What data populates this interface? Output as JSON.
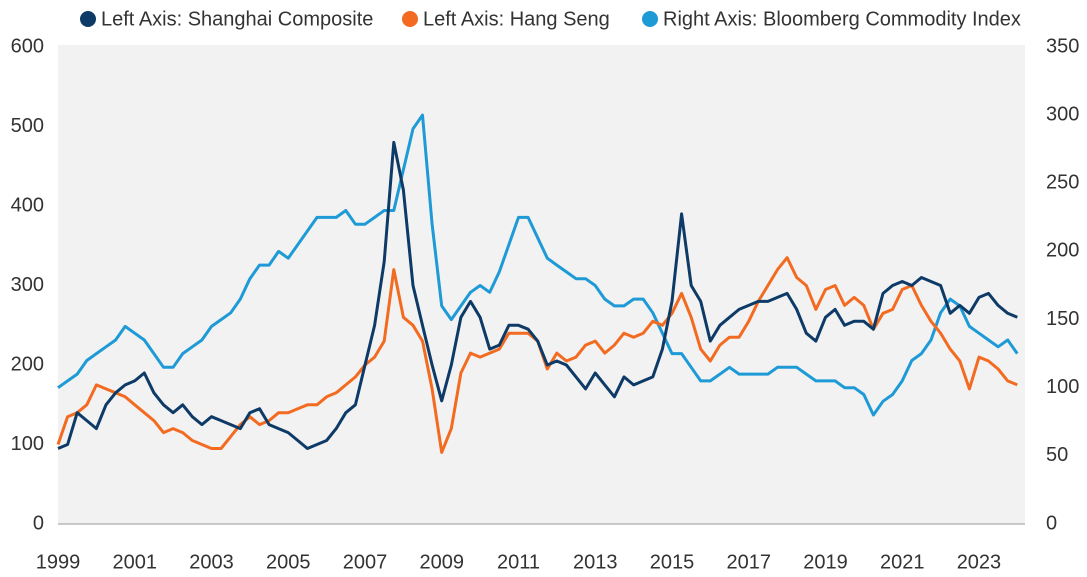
{
  "chart_data": {
    "type": "line",
    "x": [
      1999,
      1999.25,
      1999.5,
      1999.75,
      2000,
      2000.25,
      2000.5,
      2000.75,
      2001,
      2001.25,
      2001.5,
      2001.75,
      2002,
      2002.25,
      2002.5,
      2002.75,
      2003,
      2003.25,
      2003.5,
      2003.75,
      2004,
      2004.25,
      2004.5,
      2004.75,
      2005,
      2005.25,
      2005.5,
      2005.75,
      2006,
      2006.25,
      2006.5,
      2006.75,
      2007,
      2007.25,
      2007.5,
      2007.75,
      2008,
      2008.25,
      2008.5,
      2008.75,
      2009,
      2009.25,
      2009.5,
      2009.75,
      2010,
      2010.25,
      2010.5,
      2010.75,
      2011,
      2011.25,
      2011.5,
      2011.75,
      2012,
      2012.25,
      2012.5,
      2012.75,
      2013,
      2013.25,
      2013.5,
      2013.75,
      2014,
      2014.25,
      2014.5,
      2014.75,
      2015,
      2015.25,
      2015.5,
      2015.75,
      2016,
      2016.25,
      2016.5,
      2016.75,
      2017,
      2017.25,
      2017.5,
      2017.75,
      2018,
      2018.25,
      2018.5,
      2018.75,
      2019,
      2019.25,
      2019.5,
      2019.75,
      2020,
      2020.25,
      2020.5,
      2020.75,
      2021,
      2021.25,
      2021.5,
      2021.75,
      2022,
      2022.25,
      2022.5,
      2022.75,
      2023,
      2023.25,
      2023.5,
      2023.75,
      2024
    ],
    "series": [
      {
        "name": "Left Axis: Shanghai Composite",
        "color": "#0d3a66",
        "axis": "y",
        "values": [
          95,
          100,
          140,
          130,
          120,
          150,
          165,
          175,
          180,
          190,
          165,
          150,
          140,
          150,
          135,
          125,
          135,
          130,
          125,
          120,
          140,
          145,
          125,
          120,
          115,
          105,
          95,
          100,
          105,
          120,
          140,
          150,
          200,
          250,
          330,
          480,
          420,
          300,
          250,
          200,
          155,
          200,
          260,
          280,
          260,
          220,
          225,
          250,
          250,
          245,
          230,
          200,
          205,
          200,
          185,
          170,
          190,
          175,
          160,
          185,
          175,
          180,
          185,
          220,
          280,
          390,
          300,
          280,
          230,
          250,
          260,
          270,
          275,
          280,
          280,
          285,
          290,
          270,
          240,
          230,
          260,
          270,
          250,
          255,
          255,
          245,
          290,
          300,
          305,
          300,
          310,
          305,
          300,
          265,
          275,
          265,
          285,
          290,
          275,
          265,
          260
        ]
      },
      {
        "name": "Left Axis: Hang Seng",
        "color": "#f26b21",
        "axis": "y",
        "values": [
          100,
          135,
          140,
          150,
          175,
          170,
          165,
          160,
          150,
          140,
          130,
          115,
          120,
          115,
          105,
          100,
          95,
          95,
          110,
          125,
          135,
          125,
          130,
          140,
          140,
          145,
          150,
          150,
          160,
          165,
          175,
          185,
          200,
          210,
          230,
          320,
          260,
          250,
          230,
          170,
          90,
          120,
          190,
          215,
          210,
          215,
          220,
          240,
          240,
          240,
          230,
          195,
          215,
          205,
          210,
          225,
          230,
          215,
          225,
          240,
          235,
          240,
          255,
          250,
          265,
          290,
          260,
          220,
          205,
          225,
          235,
          235,
          255,
          280,
          300,
          320,
          335,
          310,
          300,
          270,
          295,
          300,
          275,
          285,
          275,
          245,
          265,
          270,
          295,
          300,
          275,
          255,
          240,
          220,
          205,
          170,
          210,
          205,
          195,
          180,
          175
        ]
      },
      {
        "name": "Right Axis: Bloomberg Commodity Index",
        "color": "#1e9ad6",
        "axis": "y2",
        "values": [
          100,
          105,
          110,
          120,
          125,
          130,
          135,
          145,
          140,
          135,
          125,
          115,
          115,
          125,
          130,
          135,
          145,
          150,
          155,
          165,
          180,
          190,
          190,
          200,
          195,
          205,
          215,
          225,
          225,
          225,
          230,
          220,
          220,
          225,
          230,
          230,
          260,
          290,
          300,
          220,
          160,
          150,
          160,
          170,
          175,
          170,
          185,
          205,
          225,
          225,
          210,
          195,
          190,
          185,
          180,
          180,
          175,
          165,
          160,
          160,
          165,
          165,
          155,
          140,
          125,
          125,
          115,
          105,
          105,
          110,
          115,
          110,
          110,
          110,
          110,
          115,
          115,
          115,
          110,
          105,
          105,
          105,
          100,
          100,
          95,
          80,
          90,
          95,
          105,
          120,
          125,
          135,
          155,
          165,
          160,
          145,
          140,
          135,
          130,
          135,
          125
        ]
      }
    ],
    "xlim": [
      1999,
      2024.2
    ],
    "xticks": [
      1999,
      2001,
      2003,
      2005,
      2007,
      2009,
      2011,
      2013,
      2015,
      2017,
      2019,
      2021,
      2023
    ],
    "ylim": [
      0,
      600
    ],
    "yticks": [
      0,
      100,
      200,
      300,
      400,
      500,
      600
    ],
    "y2lim": [
      0,
      350
    ],
    "y2ticks": [
      0,
      50,
      100,
      150,
      200,
      250,
      300,
      350
    ]
  }
}
